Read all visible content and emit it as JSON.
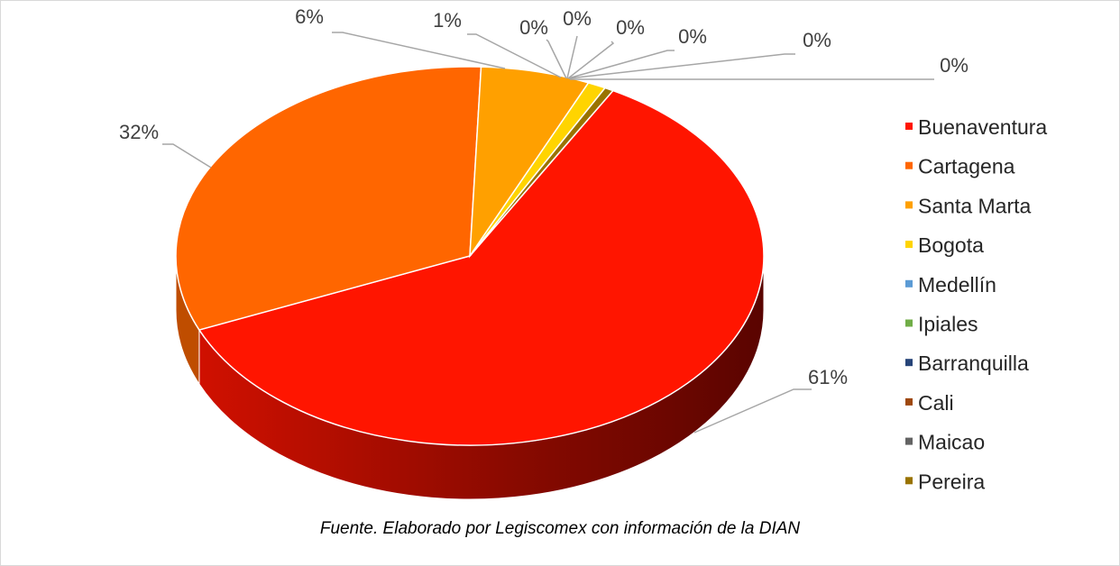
{
  "chart_data": {
    "type": "pie",
    "categories": [
      "Buenaventura",
      "Cartagena",
      "Santa Marta",
      "Bogota",
      "Medellín",
      "Ipiales",
      "Barranquilla",
      "Cali",
      "Maicao",
      "Pereira"
    ],
    "values": [
      61,
      32,
      6,
      1,
      0,
      0,
      0,
      0,
      0,
      0
    ],
    "data_labels": [
      "61%",
      "32%",
      "6%",
      "1%",
      "0%",
      "0%",
      "0%",
      "0%",
      "0%",
      "0%"
    ],
    "colors": [
      "#ff1500",
      "#ff6600",
      "#ffa000",
      "#ffd400",
      "#5b9bd5",
      "#70ad47",
      "#264478",
      "#9e480e",
      "#636363",
      "#997300"
    ],
    "legend_position": "right",
    "style": "3d-pie"
  },
  "source_note": "Fuente. Elaborado por Legiscomex con información de la DIAN"
}
